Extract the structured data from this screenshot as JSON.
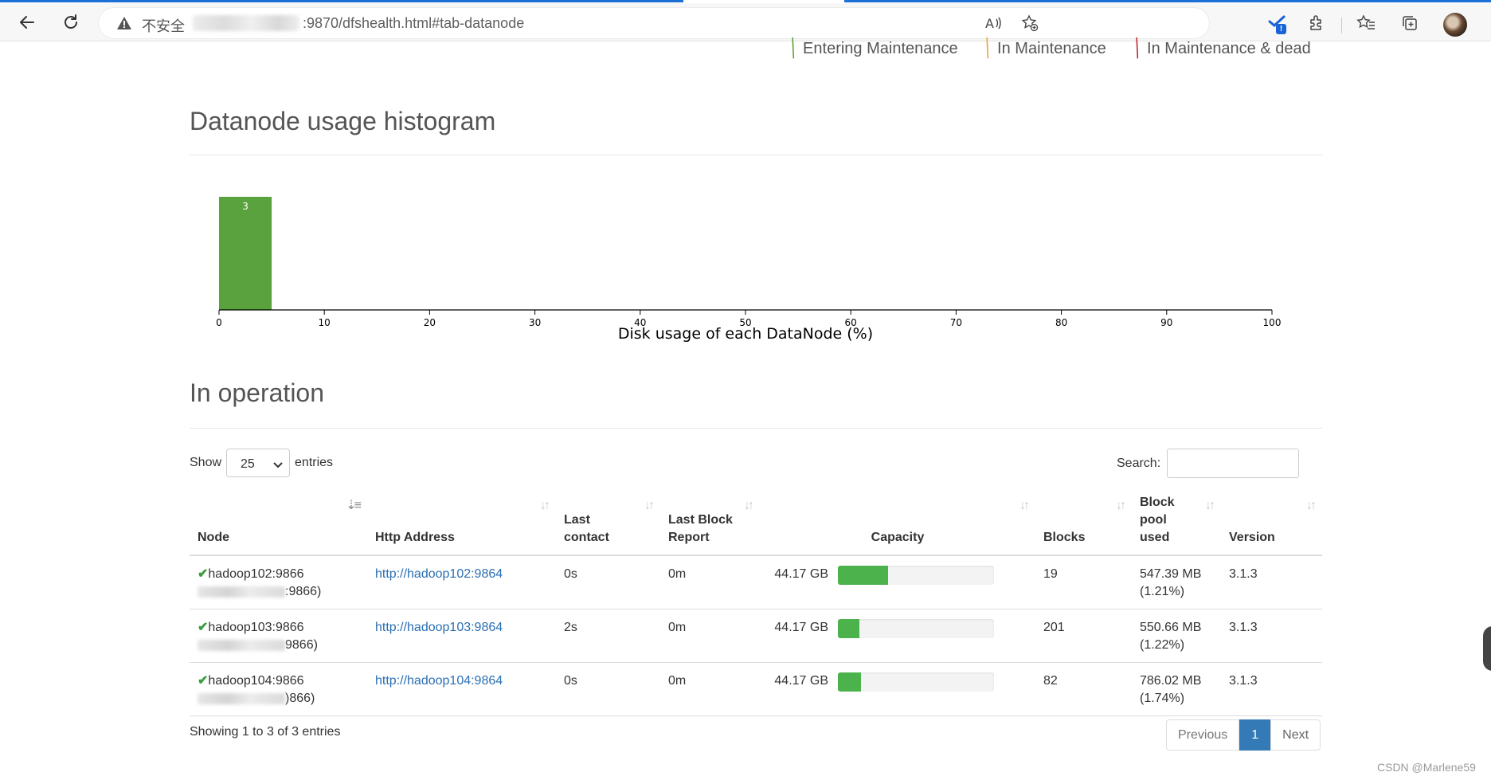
{
  "browser": {
    "security_label": "不安全",
    "url": ":9870/dfshealth.html#tab-datanode",
    "extension_badge": "!"
  },
  "legend": {
    "items": [
      {
        "label": "Entering Maintenance",
        "color": "#5aa02c"
      },
      {
        "label": "In Maintenance",
        "color": "#f0a030"
      },
      {
        "label": "In Maintenance & dead",
        "color": "#c0202a"
      }
    ]
  },
  "histogram": {
    "title": "Datanode usage histogram"
  },
  "chart_data": {
    "type": "bar",
    "title": "",
    "xlabel": "Disk usage of each DataNode (%)",
    "ylabel": "",
    "xlim": [
      0,
      100
    ],
    "xticks": [
      0,
      10,
      20,
      30,
      40,
      50,
      60,
      70,
      80,
      90,
      100
    ],
    "bins": [
      {
        "from": 0,
        "to": 5,
        "count": 3
      }
    ],
    "bar_color": "#5aa23e"
  },
  "operation": {
    "title": "In operation",
    "show_label": "Show",
    "entries_label": "entries",
    "page_size": "25",
    "search_label": "Search:",
    "columns": {
      "node": "Node",
      "http": "Http Address",
      "last_contact": "Last contact",
      "last_block_report": "Last Block Report",
      "capacity": "Capacity",
      "blocks": "Blocks",
      "block_pool_used": "Block pool used",
      "version": "Version"
    },
    "rows": [
      {
        "node": "hadoop102:9866",
        "node_suffix": ":9866)",
        "http": "http://hadoop102:9864",
        "last_contact": "0s",
        "last_block_report": "0m",
        "capacity": "44.17 GB",
        "usage_fraction": 0.32,
        "blocks": "19",
        "pool_used": "547.39 MB",
        "pool_pct": "(1.21%)",
        "version": "3.1.3"
      },
      {
        "node": "hadoop103:9866",
        "node_suffix": "9866)",
        "http": "http://hadoop103:9864",
        "last_contact": "2s",
        "last_block_report": "0m",
        "capacity": "44.17 GB",
        "usage_fraction": 0.14,
        "blocks": "201",
        "pool_used": "550.66 MB",
        "pool_pct": "(1.22%)",
        "version": "3.1.3"
      },
      {
        "node": "hadoop104:9866",
        "node_suffix": ")866)",
        "http": "http://hadoop104:9864",
        "last_contact": "0s",
        "last_block_report": "0m",
        "capacity": "44.17 GB",
        "usage_fraction": 0.15,
        "blocks": "82",
        "pool_used": "786.02 MB",
        "pool_pct": "(1.74%)",
        "version": "3.1.3"
      }
    ],
    "summary": "Showing 1 to 3 of 3 entries",
    "pagination": {
      "previous": "Previous",
      "current": "1",
      "next": "Next"
    }
  },
  "watermark": "CSDN @Marlene59"
}
